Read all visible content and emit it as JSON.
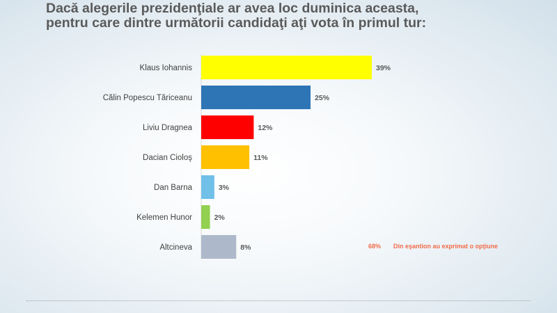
{
  "title": {
    "line1": "Dacă alegerile prezidenţiale ar avea loc duminica aceasta,",
    "line2": "pentru care dintre următorii candidaţi aţi vota în primul tur:"
  },
  "note": {
    "value": "68%",
    "text": "Din eşantion au exprimat o opţiune"
  },
  "chart_data": {
    "type": "bar",
    "orientation": "horizontal",
    "title": "Dacă alegerile prezidenţiale ar avea loc duminica aceasta, pentru care dintre următorii candidaţi aţi vota în primul tur:",
    "categories": [
      "Klaus Iohannis",
      "Călin Popescu Tăriceanu",
      "Liviu Dragnea",
      "Dacian Cioloş",
      "Dan Barna",
      "Kelemen Hunor",
      "Altcineva"
    ],
    "values": [
      39,
      25,
      12,
      11,
      3,
      2,
      8
    ],
    "labels": [
      "39%",
      "25%",
      "12%",
      "11%",
      "3%",
      "2%",
      "8%"
    ],
    "unit": "%",
    "xlim": [
      0,
      39
    ],
    "colors": [
      "#ffff00",
      "#2e75b6",
      "#ff0000",
      "#ffc000",
      "#70c0e8",
      "#92d050",
      "#adb9ca"
    ],
    "grid": false,
    "legend": "none"
  }
}
